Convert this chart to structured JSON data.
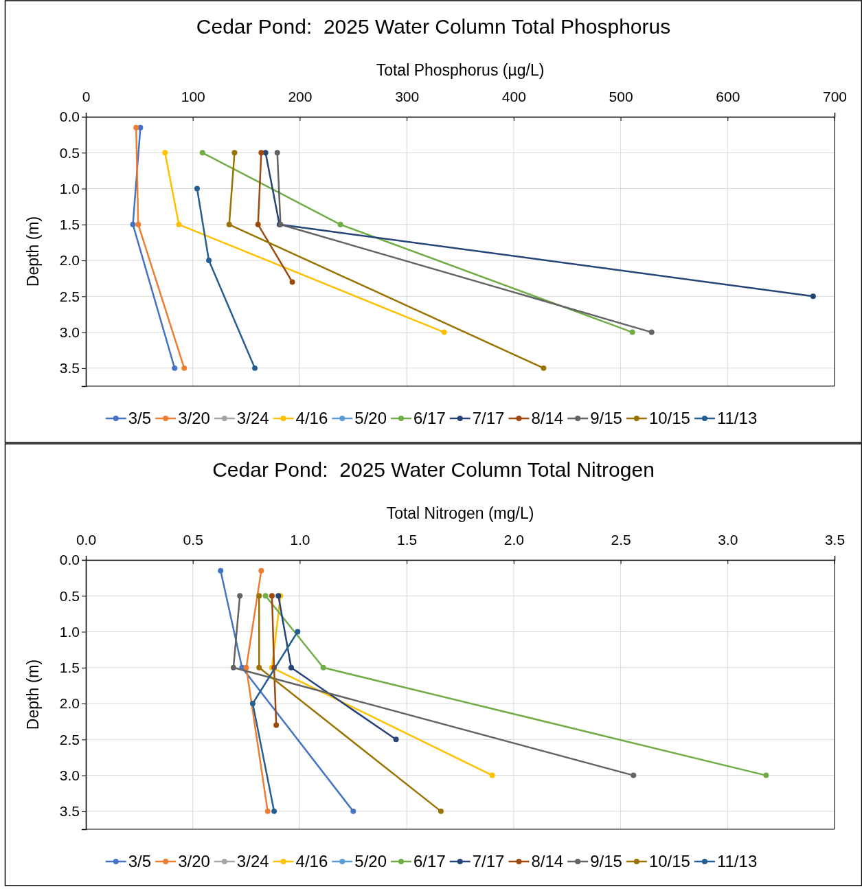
{
  "chart_data": [
    {
      "type": "line",
      "title": "Cedar Pond:  2025 Water Column Total Phosphorus",
      "xlabel": "Total Phosphorus (µg/L)",
      "ylabel": "Depth (m)",
      "xlim": [
        0,
        700
      ],
      "xticks": [
        0,
        100,
        200,
        300,
        400,
        500,
        600,
        700
      ],
      "ylim": [
        3.75,
        0
      ],
      "yticks": [
        {
          "value": 0,
          "label": "0.0"
        },
        0.5,
        {
          "value": 1,
          "label": "1.0"
        },
        1.5,
        {
          "value": 2,
          "label": "2.0"
        },
        2.5,
        {
          "value": 3,
          "label": "3.0"
        },
        3.5
      ],
      "grid": true,
      "legend": "bottom",
      "marker": "circle",
      "series": [
        {
          "name": "3/5",
          "color": "#4472c4",
          "x": [
            51,
            44,
            83
          ],
          "values": [
            0.15,
            1.5,
            3.5
          ]
        },
        {
          "name": "3/20",
          "color": "#ed7d31",
          "x": [
            47,
            49,
            92
          ],
          "values": [
            0.15,
            1.5,
            3.5
          ]
        },
        {
          "name": "3/24",
          "color": "#a5a5a5"
        },
        {
          "name": "4/16",
          "color": "#ffc000",
          "x": [
            74,
            87,
            335
          ],
          "values": [
            0.5,
            1.5,
            3.0
          ]
        },
        {
          "name": "5/20",
          "color": "#5b9bd5"
        },
        {
          "name": "6/17",
          "color": "#70ad47",
          "x": [
            109,
            238,
            511
          ],
          "values": [
            0.5,
            1.5,
            3.0
          ]
        },
        {
          "name": "7/17",
          "color": "#264478",
          "x": [
            168,
            181,
            680
          ],
          "values": [
            0.5,
            1.5,
            2.5
          ]
        },
        {
          "name": "8/14",
          "color": "#9e480e",
          "x": [
            164,
            161,
            193
          ],
          "values": [
            0.5,
            1.5,
            2.3
          ]
        },
        {
          "name": "9/15",
          "color": "#636363",
          "x": [
            179,
            182,
            529
          ],
          "values": [
            0.5,
            1.5,
            3.0
          ]
        },
        {
          "name": "10/15",
          "color": "#997300",
          "x": [
            139,
            134,
            428
          ],
          "values": [
            0.5,
            1.5,
            3.5
          ]
        },
        {
          "name": "11/13",
          "color": "#255e91",
          "x": [
            104,
            115,
            158
          ],
          "values": [
            1.0,
            2.0,
            3.5
          ]
        }
      ]
    },
    {
      "type": "line",
      "title": "Cedar Pond:  2025 Water Column Total Nitrogen",
      "xlabel": "Total Nitrogen (mg/L)",
      "ylabel": "Depth (m)",
      "xlim": [
        0,
        3.5
      ],
      "xticks": [
        {
          "value": 0,
          "label": "0.0"
        },
        0.5,
        {
          "value": 1,
          "label": "1.0"
        },
        1.5,
        {
          "value": 2,
          "label": "2.0"
        },
        2.5,
        {
          "value": 3,
          "label": "3.0"
        },
        3.5
      ],
      "ylim": [
        3.75,
        0
      ],
      "yticks": [
        {
          "value": 0,
          "label": "0.0"
        },
        0.5,
        {
          "value": 1,
          "label": "1.0"
        },
        1.5,
        {
          "value": 2,
          "label": "2.0"
        },
        2.5,
        {
          "value": 3,
          "label": "3.0"
        },
        3.5
      ],
      "grid": true,
      "legend": "bottom",
      "marker": "circle",
      "series": [
        {
          "name": "3/5",
          "color": "#4472c4",
          "x": [
            0.63,
            0.73,
            1.25
          ],
          "values": [
            0.15,
            1.5,
            3.5
          ]
        },
        {
          "name": "3/20",
          "color": "#ed7d31",
          "x": [
            0.82,
            0.75,
            0.85
          ],
          "values": [
            0.15,
            1.5,
            3.5
          ]
        },
        {
          "name": "3/24",
          "color": "#a5a5a5"
        },
        {
          "name": "4/16",
          "color": "#ffc000",
          "x": [
            0.91,
            0.87,
            1.9
          ],
          "values": [
            0.5,
            1.5,
            3.0
          ]
        },
        {
          "name": "5/20",
          "color": "#5b9bd5"
        },
        {
          "name": "6/17",
          "color": "#70ad47",
          "x": [
            0.84,
            1.11,
            3.18
          ],
          "values": [
            0.5,
            1.5,
            3.0
          ]
        },
        {
          "name": "7/17",
          "color": "#264478",
          "x": [
            0.9,
            0.96,
            1.45
          ],
          "values": [
            0.5,
            1.5,
            2.5
          ]
        },
        {
          "name": "8/14",
          "color": "#9e480e",
          "x": [
            0.87,
            0.88,
            0.89
          ],
          "values": [
            0.5,
            1.5,
            2.3
          ]
        },
        {
          "name": "9/15",
          "color": "#636363",
          "x": [
            0.72,
            0.69,
            2.56
          ],
          "values": [
            0.5,
            1.5,
            3.0
          ]
        },
        {
          "name": "10/15",
          "color": "#997300",
          "x": [
            0.81,
            0.81,
            1.66
          ],
          "values": [
            0.5,
            1.5,
            3.5
          ]
        },
        {
          "name": "11/13",
          "color": "#255e91",
          "x": [
            0.99,
            0.78,
            0.88
          ],
          "values": [
            1.0,
            2.0,
            3.5
          ]
        }
      ]
    }
  ]
}
